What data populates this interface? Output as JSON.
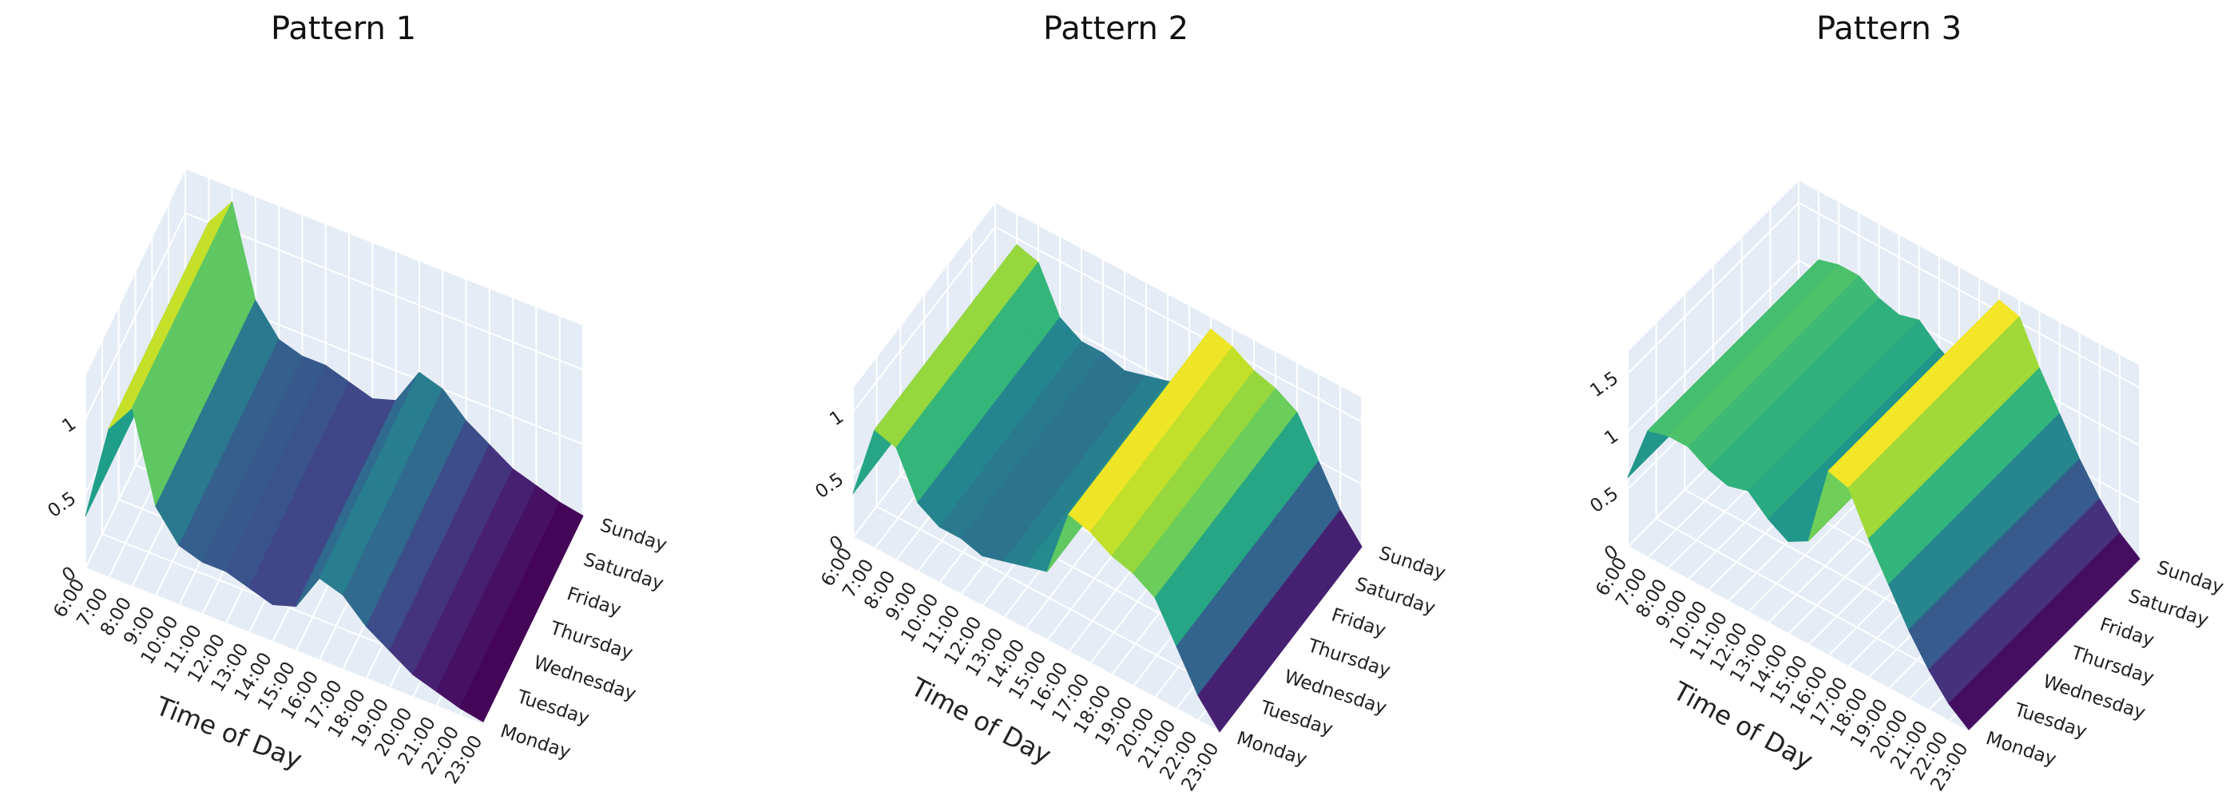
{
  "chart_data": [
    {
      "type": "surface",
      "title": "Pattern 1",
      "x_title": "Time of Day",
      "colorscale": "Viridis",
      "x": [
        "6:00",
        "7:00",
        "8:00",
        "9:00",
        "10:00",
        "11:00",
        "12:00",
        "13:00",
        "14:00",
        "15:00",
        "16:00",
        "17:00",
        "18:00",
        "19:00",
        "20:00",
        "21:00",
        "22:00",
        "23:00"
      ],
      "y": [
        "Monday",
        "Tuesday",
        "Wednesday",
        "Thursday",
        "Friday",
        "Saturday",
        "Sunday"
      ],
      "z": [
        [
          0.35,
          1.0,
          1.2,
          0.6,
          0.4,
          0.35,
          0.35,
          0.3,
          0.25,
          0.3,
          0.55,
          0.5,
          0.35,
          0.25,
          0.15,
          0.1,
          0.05,
          0.02
        ],
        [
          0.35,
          1.0,
          1.2,
          0.6,
          0.4,
          0.35,
          0.35,
          0.3,
          0.25,
          0.3,
          0.55,
          0.5,
          0.35,
          0.25,
          0.15,
          0.1,
          0.05,
          0.02
        ],
        [
          0.35,
          1.0,
          1.2,
          0.6,
          0.4,
          0.35,
          0.35,
          0.3,
          0.25,
          0.3,
          0.55,
          0.5,
          0.35,
          0.25,
          0.15,
          0.1,
          0.05,
          0.02
        ],
        [
          0.35,
          1.0,
          1.2,
          0.6,
          0.4,
          0.35,
          0.35,
          0.3,
          0.25,
          0.3,
          0.55,
          0.5,
          0.35,
          0.25,
          0.15,
          0.1,
          0.05,
          0.02
        ],
        [
          0.35,
          1.0,
          1.2,
          0.6,
          0.4,
          0.35,
          0.35,
          0.3,
          0.25,
          0.3,
          0.55,
          0.5,
          0.35,
          0.25,
          0.15,
          0.1,
          0.05,
          0.02
        ],
        [
          0.35,
          1.0,
          1.2,
          0.6,
          0.4,
          0.35,
          0.35,
          0.3,
          0.25,
          0.3,
          0.55,
          0.5,
          0.35,
          0.25,
          0.15,
          0.1,
          0.05,
          0.02
        ],
        [
          0.35,
          1.0,
          1.2,
          0.6,
          0.4,
          0.35,
          0.35,
          0.3,
          0.25,
          0.3,
          0.55,
          0.5,
          0.35,
          0.25,
          0.15,
          0.1,
          0.05,
          0.02
        ]
      ],
      "zlim": [
        0,
        1.3
      ],
      "zticks": [
        0,
        0.5,
        1
      ]
    },
    {
      "type": "surface",
      "title": "Pattern 2",
      "x_title": "Time of Day",
      "colorscale": "Viridis",
      "x": [
        "6:00",
        "7:00",
        "8:00",
        "9:00",
        "10:00",
        "11:00",
        "12:00",
        "13:00",
        "14:00",
        "15:00",
        "16:00",
        "17:00",
        "18:00",
        "19:00",
        "20:00",
        "21:00",
        "22:00",
        "23:00"
      ],
      "y": [
        "Monday",
        "Tuesday",
        "Wednesday",
        "Thursday",
        "Friday",
        "Saturday",
        "Sunday"
      ],
      "z": [
        [
          0.35,
          0.95,
          0.9,
          0.55,
          0.45,
          0.45,
          0.4,
          0.45,
          0.5,
          0.55,
          1.1,
          1.05,
          0.95,
          0.9,
          0.8,
          0.5,
          0.2,
          0.0
        ],
        [
          0.35,
          0.95,
          0.9,
          0.55,
          0.45,
          0.45,
          0.4,
          0.45,
          0.5,
          0.55,
          1.1,
          1.05,
          0.95,
          0.9,
          0.8,
          0.5,
          0.2,
          0.0
        ],
        [
          0.35,
          0.95,
          0.9,
          0.55,
          0.45,
          0.45,
          0.4,
          0.45,
          0.5,
          0.55,
          1.1,
          1.05,
          0.95,
          0.9,
          0.8,
          0.5,
          0.2,
          0.0
        ],
        [
          0.35,
          0.95,
          0.9,
          0.55,
          0.45,
          0.45,
          0.4,
          0.45,
          0.5,
          0.55,
          1.1,
          1.05,
          0.95,
          0.9,
          0.8,
          0.5,
          0.2,
          0.0
        ],
        [
          0.35,
          0.95,
          0.9,
          0.55,
          0.45,
          0.45,
          0.4,
          0.45,
          0.5,
          0.55,
          1.1,
          1.05,
          0.95,
          0.9,
          0.8,
          0.5,
          0.2,
          0.0
        ],
        [
          0.35,
          0.95,
          0.9,
          0.55,
          0.45,
          0.45,
          0.4,
          0.45,
          0.5,
          0.55,
          1.1,
          1.05,
          0.95,
          0.9,
          0.8,
          0.5,
          0.2,
          0.0
        ],
        [
          0.35,
          0.95,
          0.9,
          0.55,
          0.45,
          0.45,
          0.4,
          0.45,
          0.5,
          0.55,
          1.1,
          1.05,
          0.95,
          0.9,
          0.8,
          0.5,
          0.2,
          0.0
        ]
      ],
      "zlim": [
        0,
        1.2
      ],
      "zticks": [
        0,
        0.5,
        1
      ]
    },
    {
      "type": "surface",
      "title": "Pattern 3",
      "x_title": "Time of Day",
      "colorscale": "Viridis",
      "x": [
        "6:00",
        "7:00",
        "8:00",
        "9:00",
        "10:00",
        "11:00",
        "12:00",
        "13:00",
        "14:00",
        "15:00",
        "16:00",
        "17:00",
        "18:00",
        "19:00",
        "20:00",
        "21:00",
        "22:00",
        "23:00"
      ],
      "y": [
        "Monday",
        "Tuesday",
        "Wednesday",
        "Thursday",
        "Friday",
        "Saturday",
        "Sunday"
      ],
      "z": [
        [
          0.6,
          1.1,
          1.15,
          1.15,
          1.05,
          1.0,
          1.05,
          0.9,
          0.8,
          0.9,
          1.6,
          1.55,
          1.2,
          0.9,
          0.6,
          0.35,
          0.15,
          0.02
        ],
        [
          0.6,
          1.1,
          1.15,
          1.15,
          1.05,
          1.0,
          1.05,
          0.9,
          0.8,
          0.9,
          1.6,
          1.55,
          1.2,
          0.9,
          0.6,
          0.35,
          0.15,
          0.02
        ],
        [
          0.6,
          1.1,
          1.15,
          1.15,
          1.05,
          1.0,
          1.05,
          0.9,
          0.8,
          0.9,
          1.6,
          1.55,
          1.2,
          0.9,
          0.6,
          0.35,
          0.15,
          0.02
        ],
        [
          0.6,
          1.1,
          1.15,
          1.15,
          1.05,
          1.0,
          1.05,
          0.9,
          0.8,
          0.9,
          1.6,
          1.55,
          1.2,
          0.9,
          0.6,
          0.35,
          0.15,
          0.02
        ],
        [
          0.6,
          1.1,
          1.15,
          1.15,
          1.05,
          1.0,
          1.05,
          0.9,
          0.8,
          0.9,
          1.6,
          1.55,
          1.2,
          0.9,
          0.6,
          0.35,
          0.15,
          0.02
        ],
        [
          0.6,
          1.1,
          1.15,
          1.15,
          1.05,
          1.0,
          1.05,
          0.9,
          0.8,
          0.9,
          1.6,
          1.55,
          1.2,
          0.9,
          0.6,
          0.35,
          0.15,
          0.02
        ],
        [
          0.6,
          1.1,
          1.15,
          1.15,
          1.05,
          1.0,
          1.05,
          0.9,
          0.8,
          0.9,
          1.6,
          1.55,
          1.2,
          0.9,
          0.6,
          0.35,
          0.15,
          0.02
        ]
      ],
      "zlim": [
        0,
        1.7
      ],
      "zticks": [
        0,
        0.5,
        1,
        1.5
      ]
    }
  ]
}
